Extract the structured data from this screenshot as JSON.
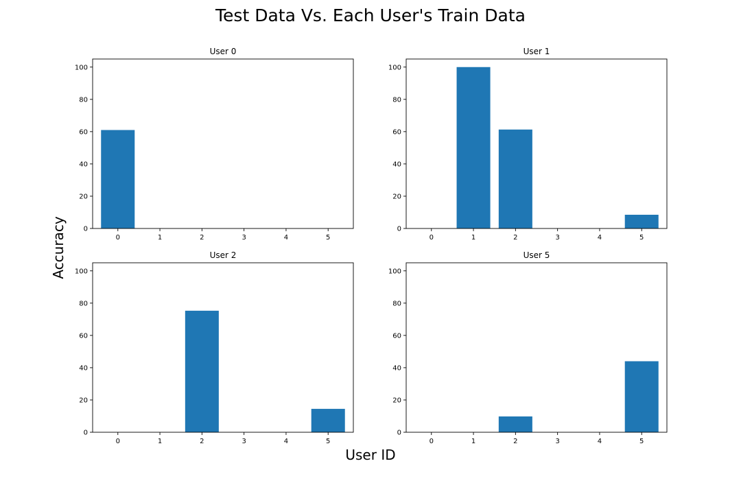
{
  "figure": {
    "title": "Test Data Vs. Each User's Train Data",
    "xlabel": "User ID",
    "ylabel": "Accuracy",
    "bar_color": "#1f77b4"
  },
  "chart_data": [
    {
      "type": "bar",
      "title": "User 0",
      "categories": [
        "0",
        "1",
        "2",
        "3",
        "4",
        "5"
      ],
      "values": [
        61,
        0,
        0,
        0,
        0,
        0
      ],
      "ylim": [
        0,
        105
      ],
      "yticks": [
        "0",
        "20",
        "40",
        "60",
        "80",
        "100"
      ],
      "grid": false
    },
    {
      "type": "bar",
      "title": "User 1",
      "categories": [
        "0",
        "1",
        "2",
        "3",
        "4",
        "5"
      ],
      "values": [
        0,
        100,
        61.3,
        0,
        0,
        8.5
      ],
      "ylim": [
        0,
        105
      ],
      "yticks": [
        "0",
        "20",
        "40",
        "60",
        "80",
        "100"
      ],
      "grid": false
    },
    {
      "type": "bar",
      "title": "User 2",
      "categories": [
        "0",
        "1",
        "2",
        "3",
        "4",
        "5"
      ],
      "values": [
        0,
        0,
        75.3,
        0,
        0,
        14.5
      ],
      "ylim": [
        0,
        105
      ],
      "yticks": [
        "0",
        "20",
        "40",
        "60",
        "80",
        "100"
      ],
      "grid": false
    },
    {
      "type": "bar",
      "title": "User 5",
      "categories": [
        "0",
        "1",
        "2",
        "3",
        "4",
        "5"
      ],
      "values": [
        0,
        0,
        9.8,
        0,
        0,
        44
      ],
      "ylim": [
        0,
        105
      ],
      "yticks": [
        "0",
        "20",
        "40",
        "60",
        "80",
        "100"
      ],
      "grid": false
    }
  ]
}
